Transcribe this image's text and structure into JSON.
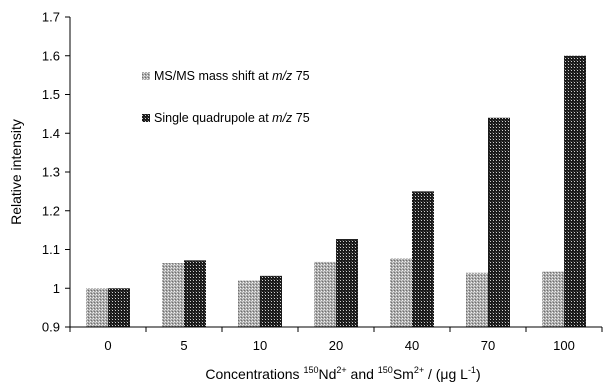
{
  "chart_data": {
    "type": "bar",
    "categories": [
      "0",
      "5",
      "10",
      "20",
      "40",
      "70",
      "100"
    ],
    "series": [
      {
        "name": "MS/MS mass shift at m/z 75",
        "label_parts": [
          "MS/MS mass shift at ",
          "m/z",
          " 75"
        ],
        "pattern": "fine-gray",
        "values": [
          1.0,
          1.065,
          1.02,
          1.068,
          1.077,
          1.04,
          1.043
        ]
      },
      {
        "name": "Single quadrupole at m/z 75",
        "label_parts": [
          "Single quadrupole at ",
          "m/z",
          " 75"
        ],
        "pattern": "dense-dark",
        "values": [
          1.0,
          1.072,
          1.032,
          1.127,
          1.25,
          1.44,
          1.6
        ]
      }
    ],
    "ylim": [
      0.9,
      1.7
    ],
    "yticks": [
      "0.9",
      "1",
      "1.1",
      "1.2",
      "1.3",
      "1.4",
      "1.5",
      "1.6",
      "1.7"
    ],
    "ylabel": "Relative  intensity",
    "xlabel_parts": {
      "pre": "Concentrations ",
      "sup1": "150",
      "mid1": "Nd",
      "sup2": "2+",
      "mid2": " and ",
      "sup3": "150",
      "mid3": "Sm",
      "sup4": "2+",
      "mid4": " / (μg L",
      "sup5": "-1",
      "post": ")"
    },
    "legend_position": "upper-left",
    "grid": false
  }
}
